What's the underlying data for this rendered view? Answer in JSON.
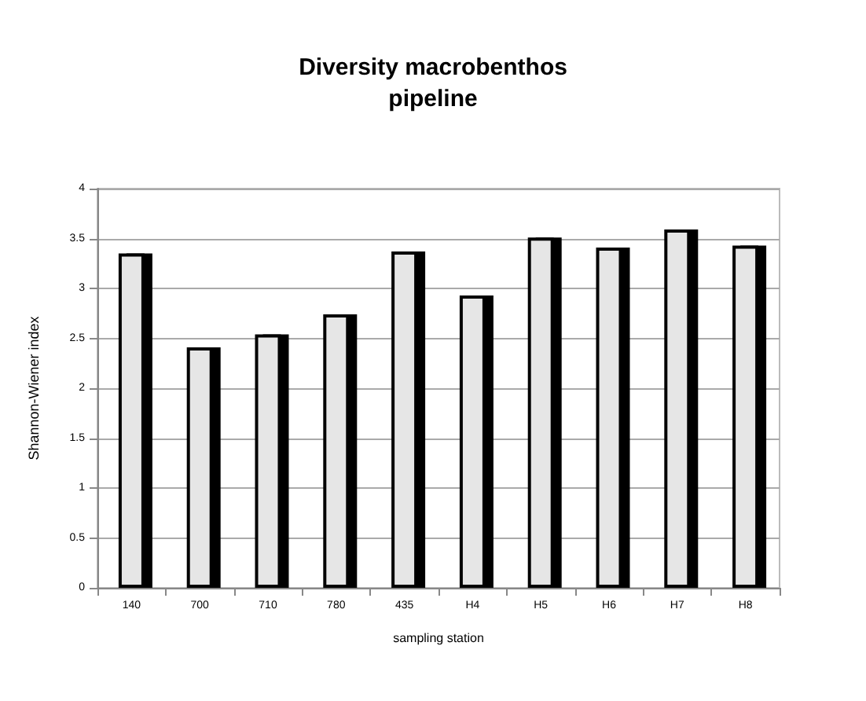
{
  "chart_data": {
    "type": "bar",
    "title": "Diversity macrobenthos\npipeline",
    "xlabel": "sampling station",
    "ylabel": "Shannon-Wiener index",
    "categories": [
      "140",
      "700",
      "710",
      "780",
      "435",
      "H4",
      "H5",
      "H6",
      "H7",
      "H8"
    ],
    "values": [
      3.35,
      2.41,
      2.54,
      2.74,
      3.37,
      2.93,
      3.51,
      3.41,
      3.59,
      3.43
    ],
    "color": "#e6e6e6",
    "ylim": [
      0,
      4
    ],
    "yticks": [
      0,
      0.5,
      1,
      1.5,
      2,
      2.5,
      3,
      3.5,
      4
    ],
    "grid": "y"
  }
}
